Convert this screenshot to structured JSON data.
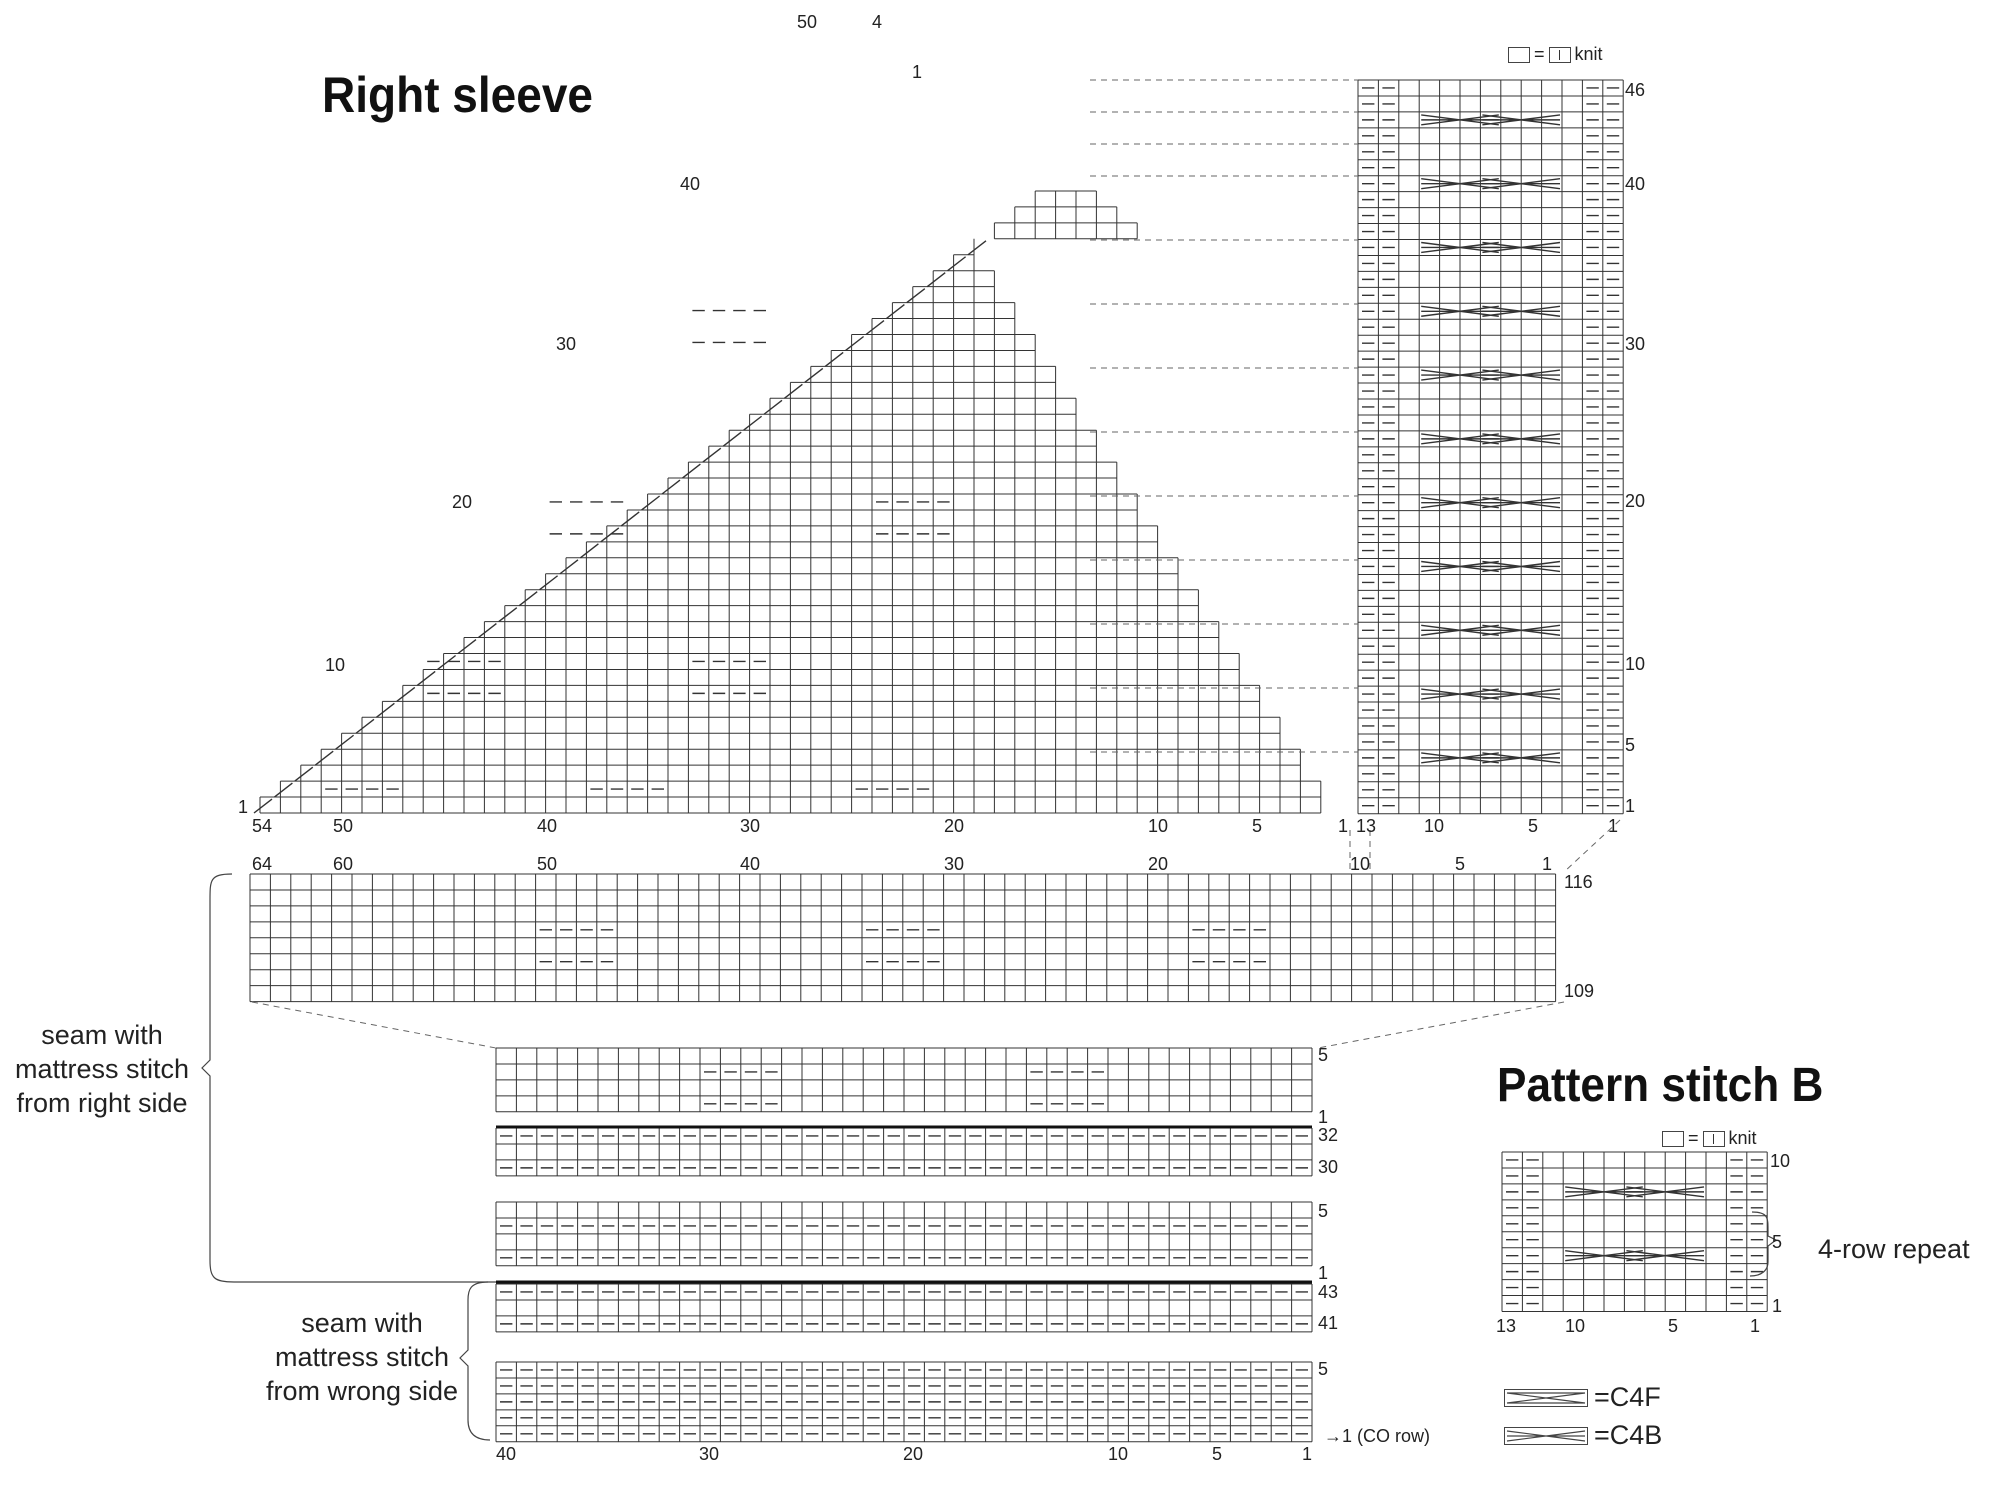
{
  "titles": {
    "right_sleeve": "Right sleeve",
    "pattern_b": "Pattern stitch B"
  },
  "legend": {
    "knit_eq": "=",
    "knit": "knit"
  },
  "cable_legend": {
    "c4f_label": "=C4F",
    "c4b_label": "=C4B"
  },
  "notes": {
    "seam_right_line1": "seam with",
    "seam_right_line2": "mattress stitch",
    "seam_right_line3": "from right side",
    "seam_wrong_line1": "seam with",
    "seam_wrong_line2": "mattress stitch",
    "seam_wrong_line3": "from wrong side",
    "repeat": "4-row repeat",
    "co_row": "→1 (CO row)"
  },
  "cap_row_labels": [
    "50",
    "4",
    "1",
    "40",
    "30",
    "20",
    "10",
    "1"
  ],
  "cap_stitch_labels": [
    "54",
    "50",
    "40",
    "30",
    "20",
    "10",
    "5",
    "1"
  ],
  "panel_row_labels": [
    "46",
    "40",
    "30",
    "20",
    "10",
    "5",
    "1"
  ],
  "panel_stitch_labels": [
    "13",
    "10",
    "5",
    "1"
  ],
  "wide_stitch_labels": [
    "64",
    "60",
    "50",
    "40",
    "30",
    "20",
    "10",
    "5",
    "1"
  ],
  "wide_row_labels": [
    "116",
    "109"
  ],
  "lower_row_labels": [
    "5",
    "1",
    "32",
    "30",
    "5",
    "1",
    "43",
    "41",
    "5"
  ],
  "lower_stitch_labels": [
    "40",
    "30",
    "20",
    "10",
    "5",
    "1"
  ],
  "ps_b_row_labels": [
    "10",
    "5",
    "1"
  ],
  "ps_b_stitch_labels": [
    "13",
    "10",
    "5",
    "1"
  ]
}
